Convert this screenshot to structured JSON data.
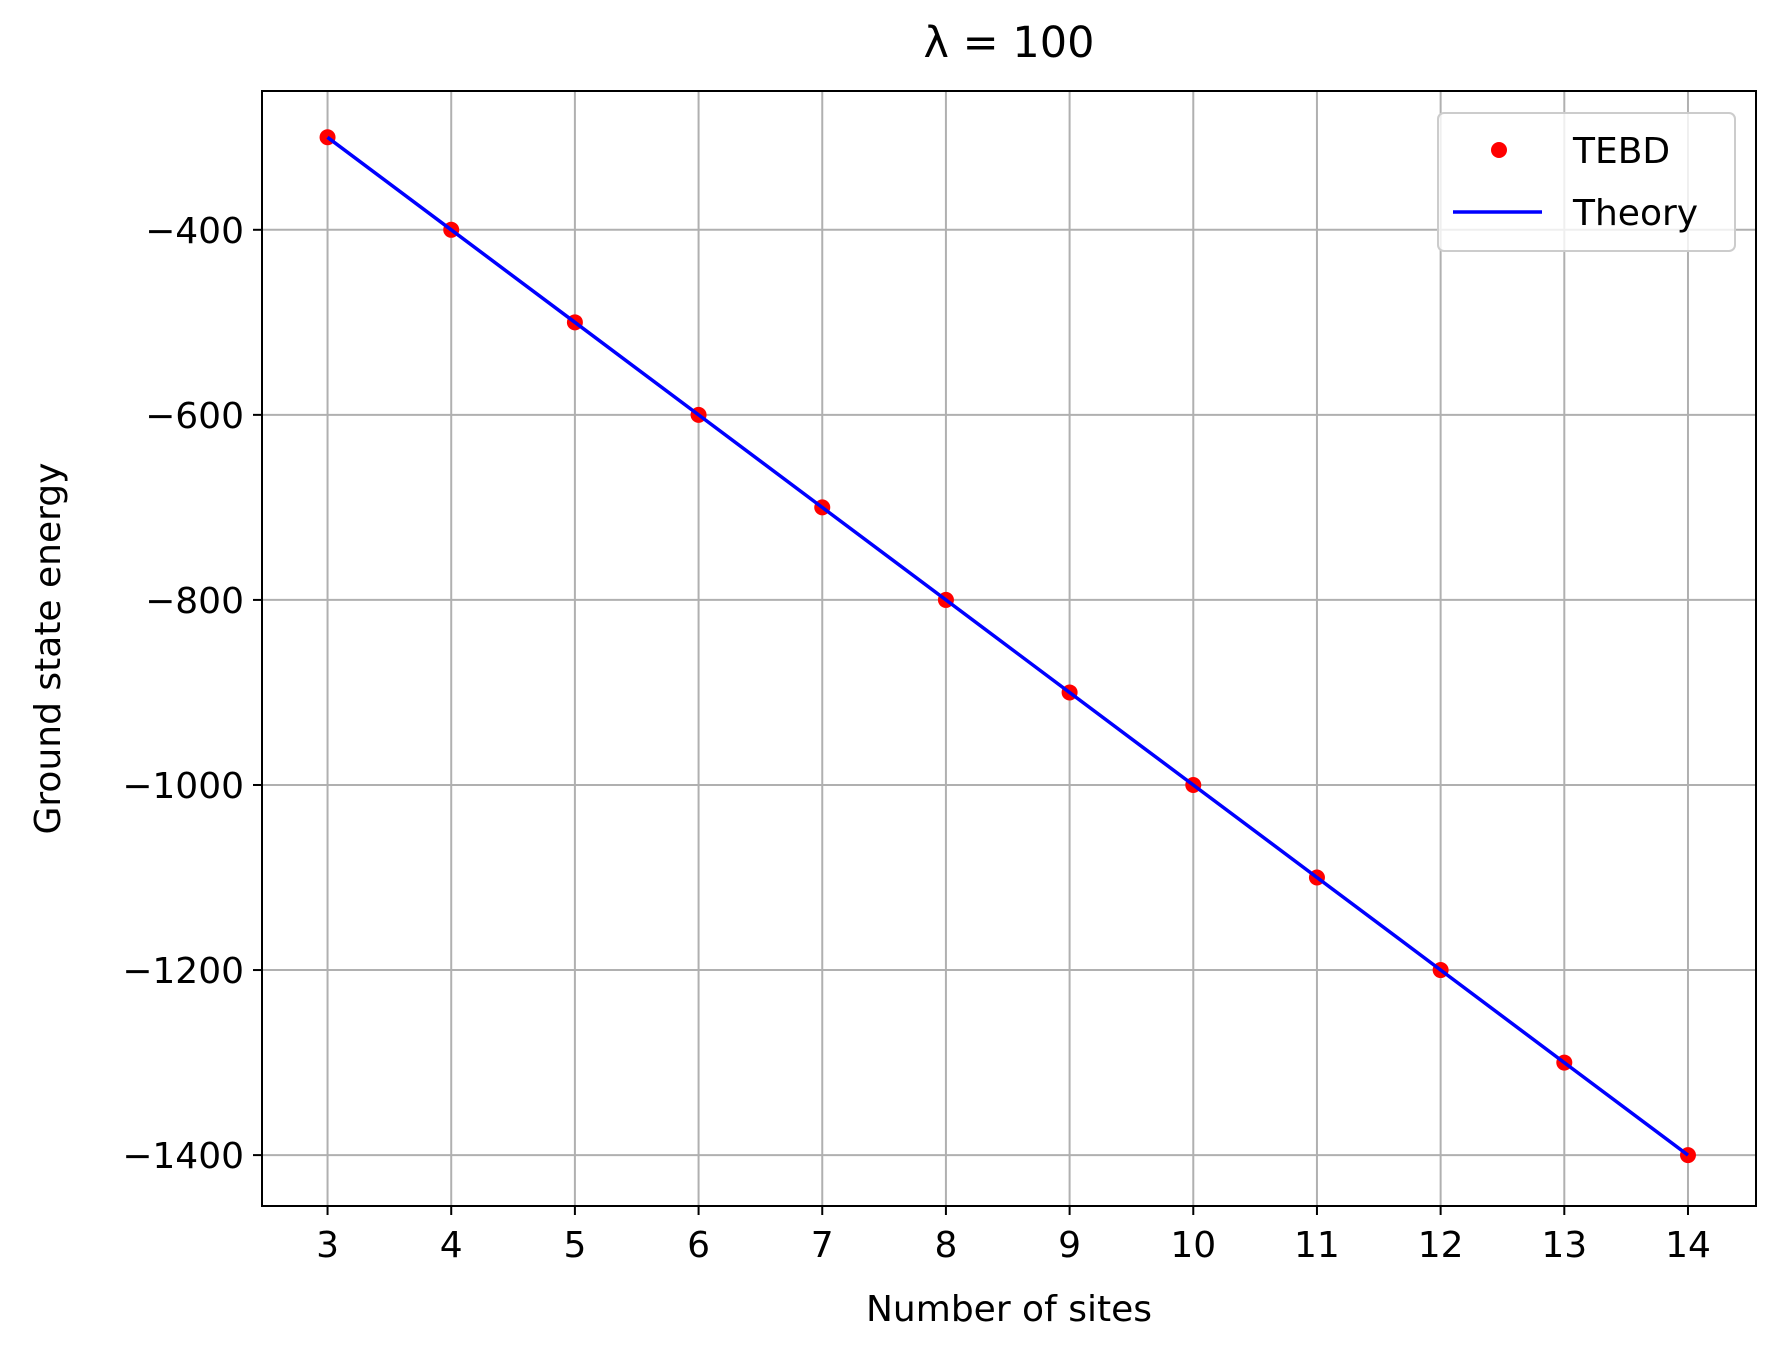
{
  "chart_data": {
    "type": "scatter",
    "title": "λ = 100",
    "xlabel": "Number of sites",
    "ylabel": "Ground state energy",
    "xlim": [
      2.47,
      14.55
    ],
    "ylim": [
      -1455,
      -250
    ],
    "x_ticks": [
      3,
      4,
      5,
      6,
      7,
      8,
      9,
      10,
      11,
      12,
      13,
      14
    ],
    "y_ticks": [
      -400,
      -600,
      -800,
      -1000,
      -1200,
      -1400
    ],
    "y_tick_labels": [
      "−400",
      "−600",
      "−800",
      "−1000",
      "−1200",
      "−1400"
    ],
    "grid": true,
    "legend_position": "top-right",
    "series": [
      {
        "name": "TEBD",
        "style": "markers",
        "color": "#ff0000",
        "x": [
          3,
          4,
          5,
          6,
          7,
          8,
          9,
          10,
          11,
          12,
          13,
          14
        ],
        "y": [
          -300,
          -400,
          -500,
          -600,
          -700,
          -800,
          -900,
          -1000,
          -1100,
          -1200,
          -1300,
          -1400
        ]
      },
      {
        "name": "Theory",
        "style": "line",
        "color": "#0000ff",
        "x": [
          3,
          4,
          5,
          6,
          7,
          8,
          9,
          10,
          11,
          12,
          13,
          14
        ],
        "y": [
          -300,
          -400,
          -500,
          -600,
          -700,
          -800,
          -900,
          -1000,
          -1100,
          -1200,
          -1300,
          -1400
        ]
      }
    ]
  }
}
